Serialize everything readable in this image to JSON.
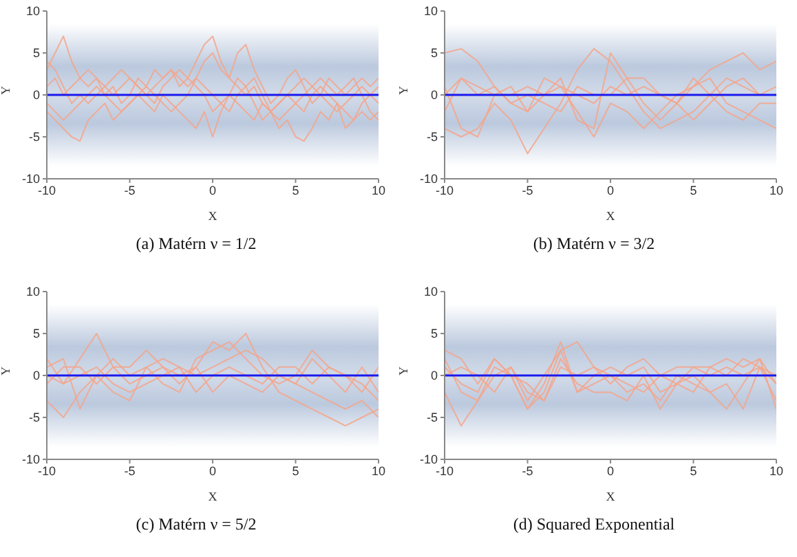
{
  "chart_data": [
    {
      "type": "line",
      "title": "(a) Matérn ν = 1/2",
      "xlabel": "X",
      "ylabel": "Y",
      "xlim": [
        -10,
        10
      ],
      "ylim": [
        -10,
        10
      ],
      "xticks": [
        -10,
        -5,
        0,
        5,
        10
      ],
      "yticks": [
        -10,
        -5,
        0,
        5,
        10
      ],
      "marker": "none",
      "bands": [
        {
          "axis": "y",
          "from": -8.5,
          "to": 8.5,
          "color": "#b4c3da"
        }
      ],
      "x": [
        -10,
        -9.5,
        -9,
        -8.5,
        -8,
        -7.5,
        -7,
        -6.5,
        -6,
        -5.5,
        -5,
        -4.5,
        -4,
        -3.5,
        -3,
        -2.5,
        -2,
        -1.5,
        -1,
        -0.5,
        0,
        0.5,
        1,
        1.5,
        2,
        2.5,
        3,
        3.5,
        4,
        4.5,
        5,
        5.5,
        6,
        6.5,
        7,
        7.5,
        8,
        8.5,
        9,
        9.5,
        10
      ],
      "series": [
        {
          "color": "#f4a58a",
          "values": [
            3,
            5,
            7,
            4,
            2,
            1,
            2,
            0,
            1,
            -1,
            0,
            2,
            1,
            3,
            2,
            3,
            1,
            2,
            4,
            6,
            7,
            4,
            2,
            5,
            6,
            3,
            1,
            -1,
            0,
            2,
            3,
            1,
            -1,
            0,
            2,
            1,
            0,
            1,
            2,
            1,
            2
          ]
        },
        {
          "color": "#f4a58a",
          "values": [
            -2,
            -3,
            -4,
            -5,
            -5.5,
            -3,
            -2,
            -1,
            -3,
            -2,
            -1,
            0,
            -1,
            -2,
            0,
            -1,
            -2,
            -3,
            -4,
            -2,
            -5,
            -2,
            0,
            -1,
            -2,
            -3,
            -1,
            -2,
            -4,
            -3,
            -5,
            -5.5,
            -4,
            -2,
            -3,
            -1,
            -4,
            -3,
            -2,
            -3,
            -2
          ]
        },
        {
          "color": "#f4a58a",
          "values": [
            1,
            2,
            0,
            1,
            2,
            3,
            2,
            1,
            0,
            1,
            2,
            1,
            0,
            1,
            2,
            3,
            2,
            1,
            2,
            4,
            5,
            3,
            2,
            1,
            0,
            1,
            -1,
            -2,
            -1,
            0,
            1,
            2,
            1,
            0,
            -1,
            -2,
            -1,
            0,
            1,
            0,
            1
          ]
        },
        {
          "color": "#f4a58a",
          "values": [
            4,
            3,
            1,
            -1,
            0,
            -1,
            0,
            1,
            2,
            3,
            2,
            1,
            0,
            -1,
            1,
            2,
            3,
            2,
            1,
            0,
            -2,
            -1,
            0,
            2,
            1,
            -1,
            -3,
            -2,
            -1,
            0,
            -1,
            -2,
            0,
            1,
            0,
            -1,
            -2,
            -3,
            -1,
            0,
            -1
          ]
        },
        {
          "color": "#f4a58a",
          "values": [
            -1,
            -2,
            -3,
            -2,
            -1,
            0,
            1,
            0,
            -1,
            -2,
            -1,
            0,
            1,
            0,
            -1,
            -2,
            -1,
            0,
            2,
            1,
            0,
            -1,
            -2,
            0,
            1,
            2,
            0,
            -2,
            -3,
            -2,
            -1,
            0,
            1,
            2,
            1,
            0,
            1,
            2,
            0,
            -2,
            -3
          ]
        }
      ],
      "ref_lines": [
        {
          "axis": "y",
          "value": 0,
          "color": "#1a1aee"
        }
      ]
    },
    {
      "type": "line",
      "title": "(b) Matérn ν = 3/2",
      "xlabel": "X",
      "ylabel": "Y",
      "xlim": [
        -10,
        10
      ],
      "ylim": [
        -10,
        10
      ],
      "xticks": [
        -10,
        -5,
        0,
        5,
        10
      ],
      "yticks": [
        -10,
        -5,
        0,
        5,
        10
      ],
      "marker": "none",
      "bands": [
        {
          "axis": "y",
          "from": -8.5,
          "to": 8.5,
          "color": "#b4c3da"
        }
      ],
      "x": [
        -10,
        -9,
        -8,
        -7,
        -6,
        -5,
        -4,
        -3,
        -2,
        -1,
        0,
        1,
        2,
        3,
        4,
        5,
        6,
        7,
        8,
        9,
        10
      ],
      "series": [
        {
          "color": "#f4a58a",
          "values": [
            5,
            5.5,
            4,
            1,
            -1,
            0,
            -1,
            -2,
            1,
            0,
            0,
            2,
            2,
            0,
            -1,
            1,
            3,
            4,
            5,
            3,
            4
          ]
        },
        {
          "color": "#f4a58a",
          "values": [
            -4,
            -5,
            -4,
            -1,
            -3,
            -7,
            -4,
            -1,
            3,
            5.5,
            4,
            1,
            -2,
            -4,
            -3,
            -2,
            0,
            2,
            1,
            0,
            1
          ]
        },
        {
          "color": "#f4a58a",
          "values": [
            -2,
            2,
            1,
            0,
            0,
            1,
            0,
            2,
            -3,
            -4,
            5,
            2,
            -1,
            -3,
            -1,
            2,
            0,
            -2,
            -3,
            -1,
            -1
          ]
        },
        {
          "color": "#f4a58a",
          "values": [
            1,
            -4,
            -5,
            0,
            1,
            -2,
            2,
            1,
            -2,
            -5,
            -1,
            -2,
            -4,
            -2,
            0,
            1,
            2,
            -1,
            -2,
            -3,
            -4
          ]
        },
        {
          "color": "#f4a58a",
          "values": [
            0,
            2,
            0,
            1,
            -1,
            -2,
            0,
            1,
            0,
            -1,
            1,
            0,
            1,
            0,
            -1,
            -3,
            -1,
            1,
            2,
            0,
            0
          ]
        }
      ],
      "ref_lines": [
        {
          "axis": "y",
          "value": 0,
          "color": "#1a1aee"
        }
      ]
    },
    {
      "type": "line",
      "title": "(c) Matérn ν = 5/2",
      "xlabel": "X",
      "ylabel": "Y",
      "xlim": [
        -10,
        10
      ],
      "ylim": [
        -10,
        10
      ],
      "xticks": [
        -10,
        -5,
        0,
        5,
        10
      ],
      "yticks": [
        -10,
        -5,
        0,
        5,
        10
      ],
      "marker": "none",
      "bands": [
        {
          "axis": "y",
          "from": -8.5,
          "to": 8.5,
          "color": "#b4c3da"
        }
      ],
      "x": [
        -10,
        -9,
        -8,
        -7,
        -6,
        -5,
        -4,
        -3,
        -2,
        -1,
        0,
        1,
        2,
        3,
        4,
        5,
        6,
        7,
        8,
        9,
        10
      ],
      "series": [
        {
          "color": "#f4a58a",
          "values": [
            2,
            -1,
            2,
            5,
            1,
            1,
            3,
            1,
            -1,
            1,
            4,
            3,
            5,
            1,
            -2,
            -3,
            -4,
            -5,
            -6,
            -5,
            -4
          ]
        },
        {
          "color": "#f4a58a",
          "values": [
            -3,
            -5,
            -2,
            0,
            2,
            0,
            1,
            -1,
            -2,
            2,
            3,
            4,
            2,
            0,
            -1,
            0,
            3,
            1,
            0,
            -1,
            -3
          ]
        },
        {
          "color": "#f4a58a",
          "values": [
            1,
            2,
            -4,
            0,
            -2,
            -3,
            1,
            2,
            1,
            0,
            1,
            2,
            3,
            2,
            0,
            -1,
            2,
            0,
            -2,
            1,
            -2
          ]
        },
        {
          "color": "#f4a58a",
          "values": [
            -1,
            1,
            1,
            -1,
            1,
            -1,
            0,
            1,
            0,
            1,
            -2,
            0,
            -1,
            -2,
            0,
            -1,
            -2,
            -3,
            -4,
            -3,
            -5
          ]
        },
        {
          "color": "#f4a58a",
          "values": [
            0,
            -1,
            0,
            1,
            -1,
            -2,
            -1,
            0,
            1,
            -2,
            0,
            1,
            0,
            -1,
            1,
            1,
            -1,
            1,
            0,
            -2,
            1
          ]
        }
      ],
      "ref_lines": [
        {
          "axis": "y",
          "value": 0,
          "color": "#1a1aee"
        }
      ]
    },
    {
      "type": "line",
      "title": "(d) Squared Exponential",
      "xlabel": "X",
      "ylabel": "Y",
      "xlim": [
        -10,
        10
      ],
      "ylim": [
        -10,
        10
      ],
      "xticks": [
        -10,
        -5,
        0,
        5,
        10
      ],
      "yticks": [
        -10,
        -5,
        0,
        5,
        10
      ],
      "marker": "none",
      "bands": [
        {
          "axis": "y",
          "from": -8.5,
          "to": 8.5,
          "color": "#b4c3da"
        }
      ],
      "x": [
        -10,
        -9,
        -8,
        -7,
        -6,
        -5,
        -4,
        -3,
        -2,
        -1,
        0,
        1,
        2,
        3,
        4,
        5,
        6,
        7,
        8,
        9,
        10
      ],
      "series": [
        {
          "color": "#f4a58a",
          "values": [
            3,
            2,
            -1,
            2,
            0,
            -4,
            -2,
            3,
            4,
            1,
            0,
            -1,
            -2,
            0,
            1,
            1,
            1,
            0,
            2,
            1,
            -1
          ]
        },
        {
          "color": "#f4a58a",
          "values": [
            -2,
            -6,
            -3,
            1,
            0,
            -4,
            -1,
            4,
            -2,
            -1,
            0,
            -2,
            -1,
            -3,
            0,
            -1,
            -2,
            -4,
            -1,
            2,
            -4
          ]
        },
        {
          "color": "#f4a58a",
          "values": [
            2,
            -2,
            -3,
            0,
            1,
            -2,
            -3,
            2,
            -1,
            -2,
            -2,
            -3,
            0,
            -4,
            -1,
            0,
            -2,
            -1,
            -4,
            1,
            0
          ]
        },
        {
          "color": "#f4a58a",
          "values": [
            0,
            1,
            0,
            -2,
            1,
            -3,
            0,
            3,
            -2,
            0,
            1,
            0,
            1,
            -2,
            -1,
            1,
            0,
            1,
            0,
            1,
            -3
          ]
        },
        {
          "color": "#f4a58a",
          "values": [
            1,
            -1,
            -2,
            2,
            0,
            -1,
            -3,
            1,
            0,
            1,
            -1,
            1,
            2,
            0,
            -1,
            -2,
            1,
            2,
            1,
            2,
            -1
          ]
        }
      ],
      "ref_lines": [
        {
          "axis": "y",
          "value": 0,
          "color": "#1a1aee"
        }
      ]
    }
  ]
}
